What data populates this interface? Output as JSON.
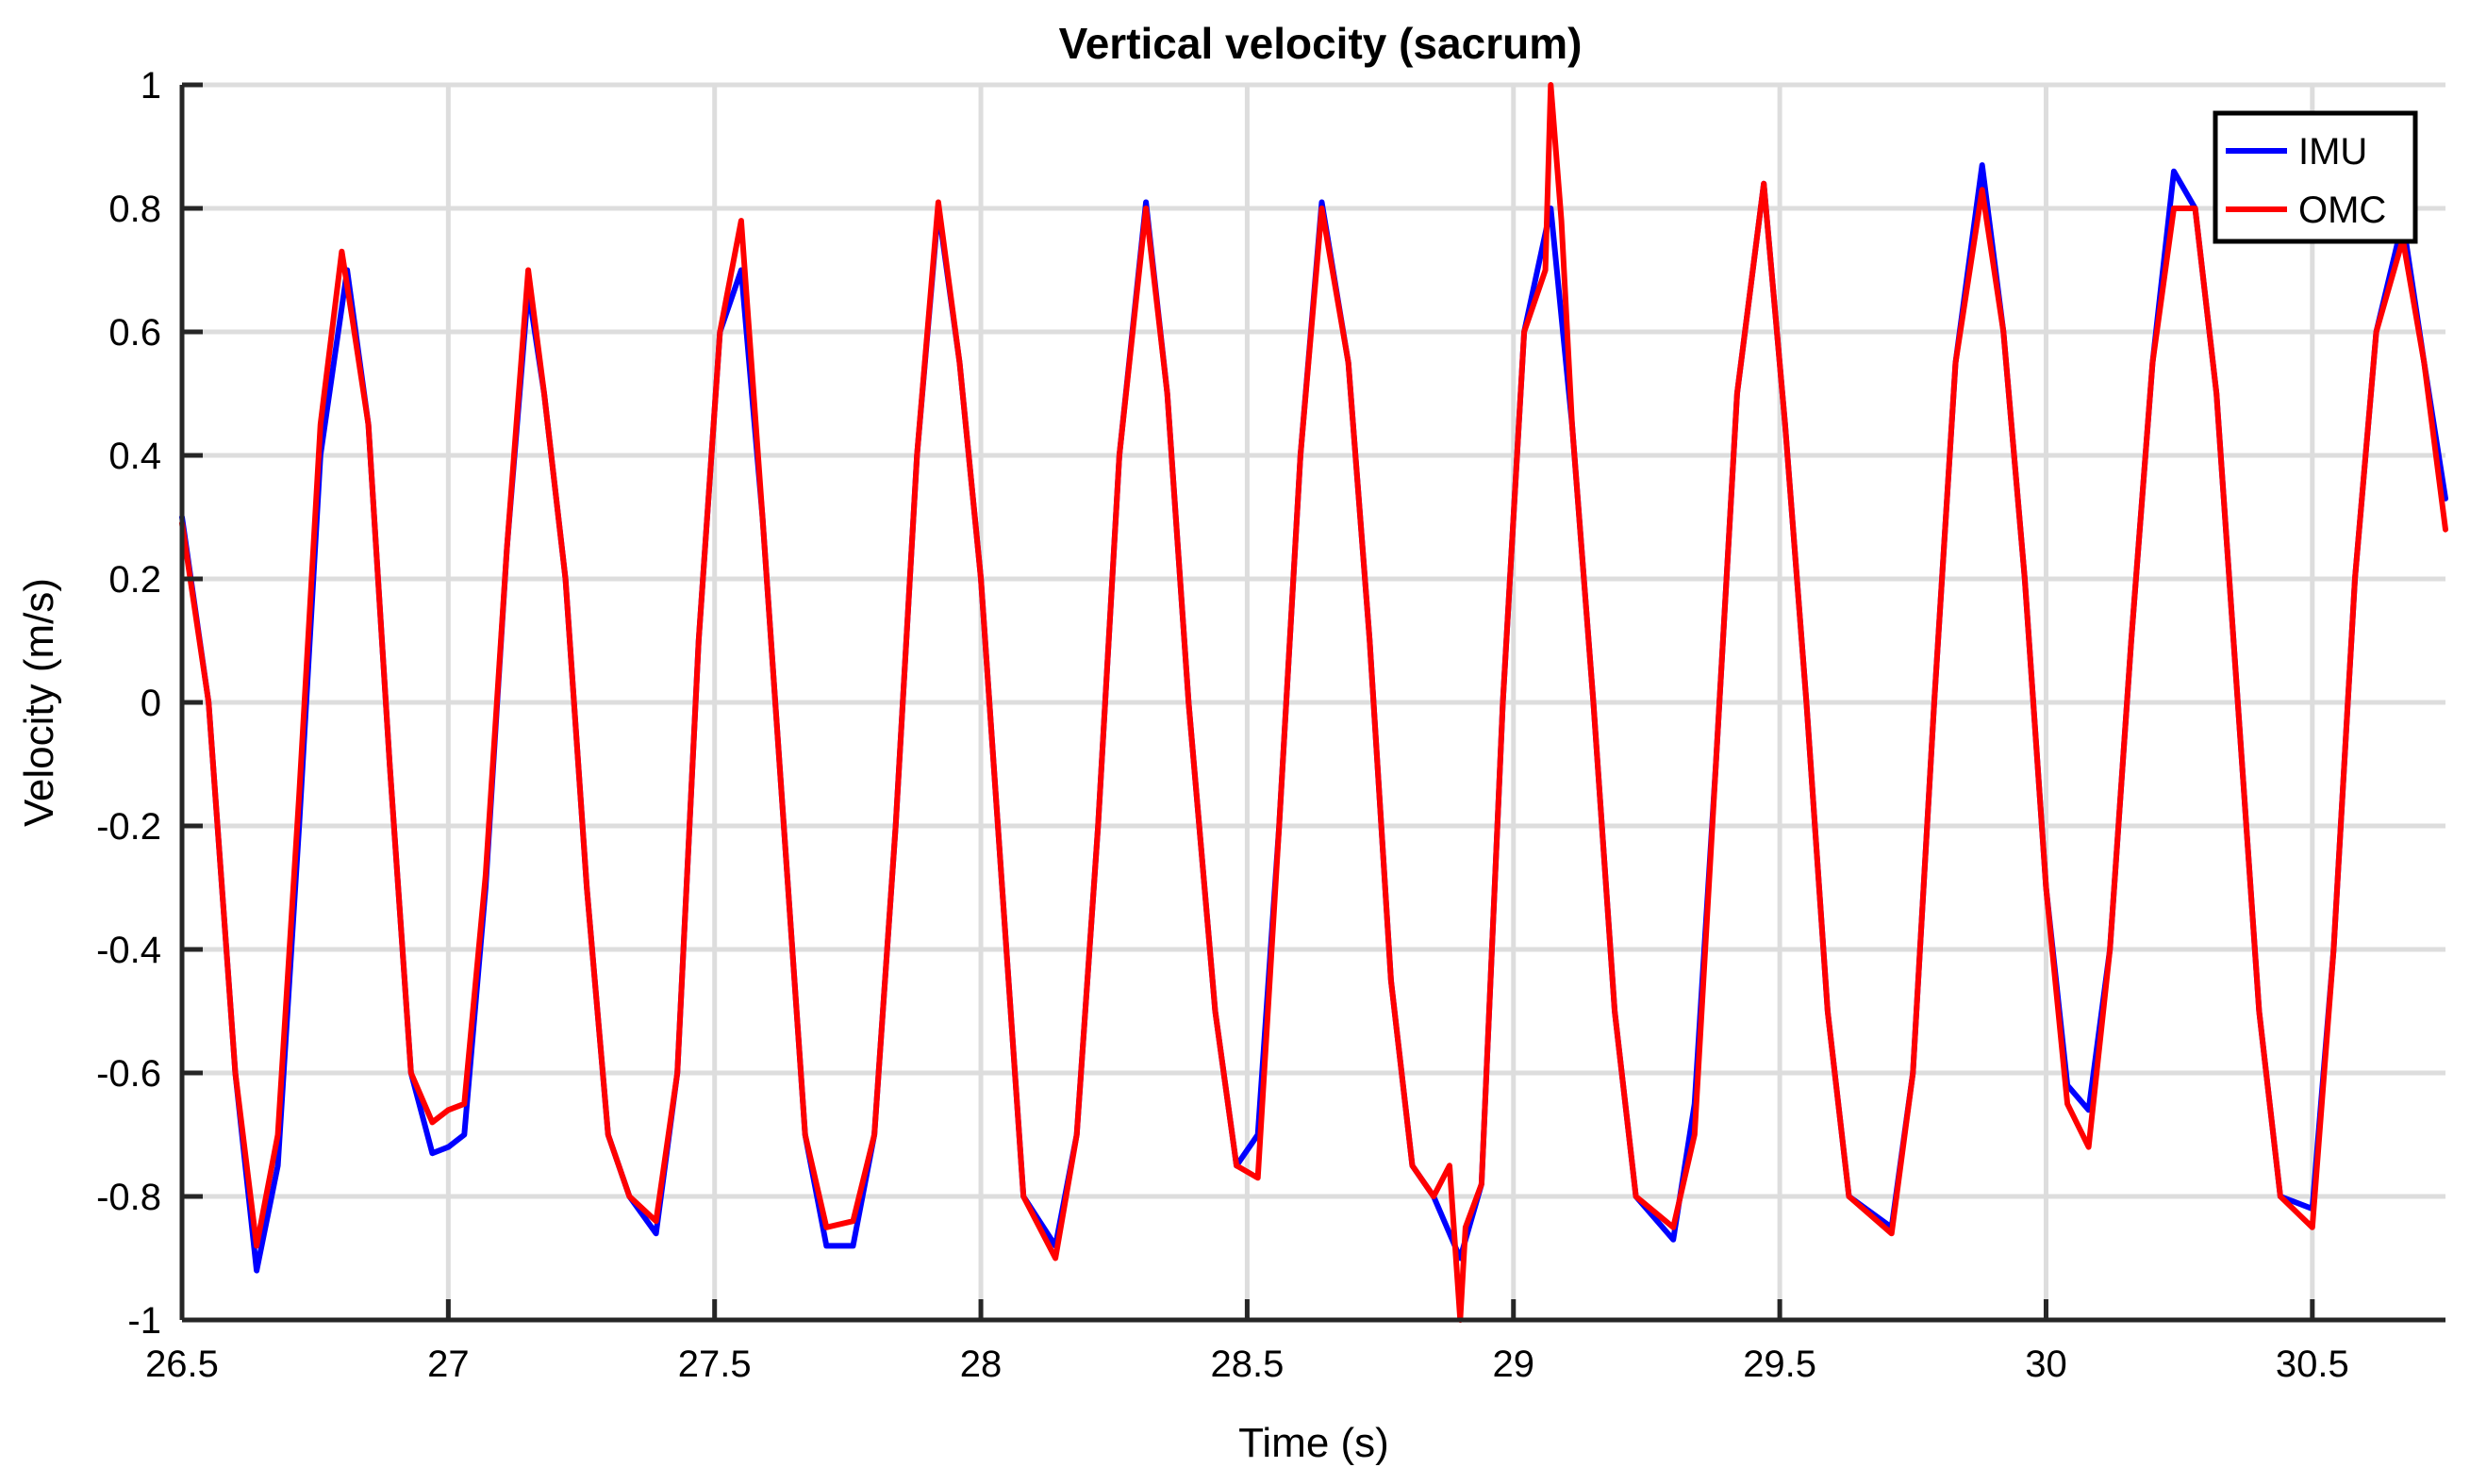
{
  "chart_data": {
    "type": "line",
    "title": "Vertical velocity (sacrum)",
    "xlabel": "Time (s)",
    "ylabel": "Velocity (m/s)",
    "xlim": [
      26.5,
      30.75
    ],
    "ylim": [
      -1,
      1
    ],
    "xticks": [
      26.5,
      27,
      27.5,
      28,
      28.5,
      29,
      29.5,
      30,
      30.5
    ],
    "xtick_labels": [
      "26.5",
      "27",
      "27.5",
      "28",
      "28.5",
      "29",
      "29.5",
      "30",
      "30.5"
    ],
    "yticks": [
      -1,
      -0.8,
      -0.6,
      -0.4,
      -0.2,
      0,
      0.2,
      0.4,
      0.6,
      0.8,
      1
    ],
    "ytick_labels": [
      "-1",
      "-0.8",
      "-0.6",
      "-0.4",
      "-0.2",
      "0",
      "0.2",
      "0.4",
      "0.6",
      "0.8",
      "1"
    ],
    "grid": true,
    "legend_position": "top-right",
    "series": [
      {
        "name": "IMU",
        "color": "#0000ff",
        "x": [
          26.5,
          26.55,
          26.6,
          26.64,
          26.68,
          26.72,
          26.76,
          26.81,
          26.85,
          26.89,
          26.93,
          26.97,
          27.0,
          27.03,
          27.07,
          27.11,
          27.15,
          27.18,
          27.22,
          27.26,
          27.3,
          27.34,
          27.39,
          27.43,
          27.47,
          27.51,
          27.55,
          27.59,
          27.63,
          27.67,
          27.71,
          27.76,
          27.8,
          27.84,
          27.88,
          27.92,
          27.96,
          28.0,
          28.04,
          28.08,
          28.14,
          28.18,
          28.22,
          28.26,
          28.31,
          28.35,
          28.39,
          28.44,
          28.48,
          28.52,
          28.56,
          28.6,
          28.64,
          28.69,
          28.73,
          28.77,
          28.81,
          28.85,
          28.9,
          28.94,
          28.98,
          29.02,
          29.07,
          29.11,
          29.15,
          29.19,
          29.23,
          29.3,
          29.34,
          29.38,
          29.42,
          29.47,
          29.51,
          29.55,
          29.59,
          29.63,
          29.71,
          29.75,
          29.79,
          29.83,
          29.88,
          29.92,
          29.96,
          30.0,
          30.04,
          30.08,
          30.12,
          30.16,
          30.2,
          30.24,
          30.28,
          30.32,
          30.36,
          30.4,
          30.44,
          30.5,
          30.54,
          30.58,
          30.62,
          30.67,
          30.71,
          30.75
        ],
        "y": [
          0.3,
          0.0,
          -0.6,
          -0.92,
          -0.75,
          -0.2,
          0.4,
          0.7,
          0.45,
          -0.1,
          -0.6,
          -0.73,
          -0.72,
          -0.7,
          -0.3,
          0.25,
          0.67,
          0.5,
          0.2,
          -0.3,
          -0.7,
          -0.8,
          -0.86,
          -0.6,
          0.1,
          0.6,
          0.7,
          0.3,
          -0.2,
          -0.7,
          -0.88,
          -0.88,
          -0.7,
          -0.2,
          0.4,
          0.8,
          0.55,
          0.2,
          -0.3,
          -0.8,
          -0.88,
          -0.7,
          -0.2,
          0.4,
          0.81,
          0.5,
          0.0,
          -0.5,
          -0.75,
          -0.7,
          -0.2,
          0.4,
          0.81,
          0.55,
          0.1,
          -0.45,
          -0.75,
          -0.8,
          -0.9,
          -0.78,
          0.0,
          0.6,
          0.8,
          0.45,
          0.0,
          -0.5,
          -0.8,
          -0.87,
          -0.65,
          -0.1,
          0.5,
          0.84,
          0.45,
          0.0,
          -0.5,
          -0.8,
          -0.85,
          -0.6,
          0.0,
          0.55,
          0.87,
          0.6,
          0.2,
          -0.3,
          -0.62,
          -0.66,
          -0.4,
          0.1,
          0.55,
          0.86,
          0.8,
          0.5,
          0.0,
          -0.5,
          -0.8,
          -0.82,
          -0.4,
          0.2,
          0.6,
          0.78,
          0.55,
          0.33
        ]
      },
      {
        "name": "OMC",
        "color": "#ff0000",
        "x": [
          26.5,
          26.55,
          26.6,
          26.64,
          26.68,
          26.72,
          26.76,
          26.8,
          26.82,
          26.85,
          26.89,
          26.93,
          26.97,
          27.0,
          27.03,
          27.07,
          27.11,
          27.15,
          27.18,
          27.22,
          27.26,
          27.3,
          27.34,
          27.39,
          27.43,
          27.47,
          27.51,
          27.55,
          27.59,
          27.63,
          27.67,
          27.71,
          27.76,
          27.8,
          27.84,
          27.88,
          27.92,
          27.96,
          28.0,
          28.04,
          28.08,
          28.14,
          28.18,
          28.22,
          28.26,
          28.31,
          28.35,
          28.39,
          28.44,
          28.48,
          28.52,
          28.56,
          28.6,
          28.64,
          28.69,
          28.73,
          28.77,
          28.81,
          28.85,
          28.88,
          28.9,
          28.91,
          28.94,
          28.98,
          29.02,
          29.06,
          29.07,
          29.09,
          29.11,
          29.15,
          29.19,
          29.23,
          29.3,
          29.34,
          29.38,
          29.42,
          29.47,
          29.51,
          29.55,
          29.59,
          29.63,
          29.71,
          29.75,
          29.79,
          29.83,
          29.88,
          29.92,
          29.96,
          30.0,
          30.04,
          30.08,
          30.12,
          30.16,
          30.2,
          30.24,
          30.28,
          30.32,
          30.36,
          30.4,
          30.44,
          30.5,
          30.54,
          30.58,
          30.62,
          30.67,
          30.71,
          30.75
        ],
        "y": [
          0.29,
          0.0,
          -0.6,
          -0.88,
          -0.7,
          -0.15,
          0.45,
          0.73,
          0.62,
          0.45,
          -0.1,
          -0.6,
          -0.68,
          -0.66,
          -0.65,
          -0.28,
          0.25,
          0.7,
          0.5,
          0.2,
          -0.3,
          -0.7,
          -0.8,
          -0.84,
          -0.6,
          0.1,
          0.6,
          0.78,
          0.3,
          -0.2,
          -0.7,
          -0.85,
          -0.84,
          -0.7,
          -0.2,
          0.4,
          0.81,
          0.55,
          0.2,
          -0.3,
          -0.8,
          -0.9,
          -0.7,
          -0.2,
          0.4,
          0.8,
          0.5,
          0.0,
          -0.5,
          -0.75,
          -0.77,
          -0.2,
          0.4,
          0.8,
          0.55,
          0.1,
          -0.45,
          -0.75,
          -0.8,
          -0.75,
          -1.0,
          -0.85,
          -0.78,
          0.0,
          0.6,
          0.7,
          1.0,
          0.78,
          0.45,
          0.0,
          -0.5,
          -0.8,
          -0.85,
          -0.7,
          -0.1,
          0.5,
          0.84,
          0.45,
          0.0,
          -0.5,
          -0.8,
          -0.86,
          -0.6,
          0.0,
          0.55,
          0.83,
          0.6,
          0.2,
          -0.3,
          -0.65,
          -0.72,
          -0.4,
          0.1,
          0.55,
          0.8,
          0.8,
          0.5,
          0.0,
          -0.5,
          -0.8,
          -0.85,
          -0.4,
          0.2,
          0.6,
          0.75,
          0.55,
          0.28
        ]
      }
    ]
  }
}
